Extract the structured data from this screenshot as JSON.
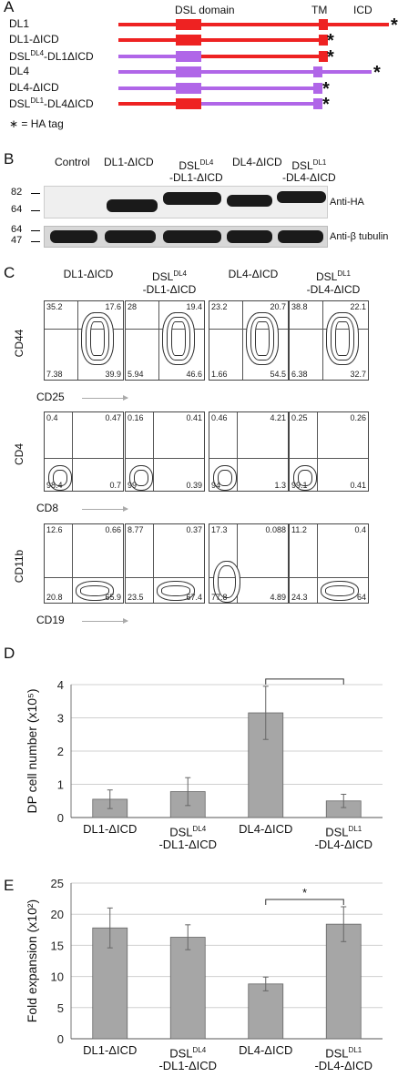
{
  "panel_a": {
    "label": "A",
    "header_dsl": "DSL domain",
    "header_tm": "TM",
    "header_icd": "ICD",
    "constructs": [
      {
        "name": "DL1"
      },
      {
        "name": "DL1-ΔICD"
      },
      {
        "name": "DSL",
        "sup": "DL4",
        "rest": "-DL1ΔICD"
      },
      {
        "name": "DL4"
      },
      {
        "name": "DL4-ΔICD"
      },
      {
        "name": "DSL",
        "sup": "DL1",
        "rest": "-DL4ΔICD"
      }
    ],
    "ha_legend": "∗ = HA tag",
    "colors": {
      "dl1": "#ee2222",
      "dl4": "#b066e8"
    }
  },
  "panel_b": {
    "label": "B",
    "lanes": [
      "Control",
      "DL1-ΔICD",
      "DSLDL4 -DL1-ΔICD",
      "DL4-ΔICD",
      "DSLDL1 -DL4-ΔICD"
    ],
    "lane_labels": [
      {
        "l1": "Control",
        "l2": ""
      },
      {
        "l1": "DL1-ΔICD",
        "l2": ""
      },
      {
        "l1": "DSL",
        "sup": "DL4",
        "l2": "-DL1-ΔICD"
      },
      {
        "l1": "DL4-ΔICD",
        "l2": ""
      },
      {
        "l1": "DSL",
        "sup": "DL1",
        "l2": "-DL4-ΔICD"
      }
    ],
    "mw_top": [
      "82",
      "64"
    ],
    "mw_bottom": [
      "64",
      "47"
    ],
    "blot1": "Anti-HA",
    "blot2": "Anti-β tubulin"
  },
  "panel_c": {
    "label": "C",
    "columns": [
      {
        "l1": "DL1-ΔICD",
        "l2": ""
      },
      {
        "l1": "DSL",
        "sup": "DL4",
        "l2": "-DL1-ΔICD"
      },
      {
        "l1": "DL4-ΔICD",
        "l2": ""
      },
      {
        "l1": "DSL",
        "sup": "DL1",
        "l2": "-DL4-ΔICD"
      }
    ],
    "rows": [
      {
        "ylabel": "CD44",
        "xlabel": "CD25",
        "quadrants": [
          [
            "35.2",
            "17.6",
            "7.38",
            "39.9"
          ],
          [
            "28",
            "19.4",
            "5.94",
            "46.6"
          ],
          [
            "23.2",
            "20.7",
            "1.66",
            "54.5"
          ],
          [
            "38.8",
            "22.1",
            "6.38",
            "32.7"
          ]
        ]
      },
      {
        "ylabel": "CD4",
        "xlabel": "CD8",
        "quadrants": [
          [
            "0.4",
            "0.47",
            "98.4",
            "0.7"
          ],
          [
            "0.16",
            "0.41",
            "99",
            "0.39"
          ],
          [
            "0.46",
            "4.21",
            "94",
            "1.3"
          ],
          [
            "0.25",
            "0.26",
            "99.1",
            "0.41"
          ]
        ]
      },
      {
        "ylabel": "CD11b",
        "xlabel": "CD19",
        "quadrants": [
          [
            "12.6",
            "0.66",
            "20.8",
            "65.9"
          ],
          [
            "8.77",
            "0.37",
            "23.5",
            "67.4"
          ],
          [
            "17.3",
            "0.088",
            "77.8",
            "4.89"
          ],
          [
            "11.2",
            "0.4",
            "24.3",
            "64"
          ]
        ]
      }
    ]
  },
  "chart_data": [
    {
      "panel": "D",
      "type": "bar",
      "categories": [
        "DL1-ΔICD",
        "DSLDL4-DL1-ΔICD",
        "DL4-ΔICD",
        "DSLDL1-DL4-ΔICD"
      ],
      "values": [
        0.55,
        0.78,
        3.15,
        0.5
      ],
      "errors": [
        0.28,
        0.42,
        0.8,
        0.2
      ],
      "ylabel": "DP cell number (x10⁵)",
      "ylim": [
        0,
        4
      ],
      "yticks": [
        "0",
        "1",
        "2",
        "3",
        "4"
      ],
      "significance": {
        "between": [
          2,
          3
        ],
        "mark": "*"
      },
      "grid": true,
      "bar_color": "#a6a6a6"
    },
    {
      "panel": "E",
      "type": "bar",
      "categories": [
        "DL1-ΔICD",
        "DSLDL4-DL1-ΔICD",
        "DL4-ΔICD",
        "DSLDL1-DL4-ΔICD"
      ],
      "values": [
        17.8,
        16.3,
        8.8,
        18.4
      ],
      "errors": [
        3.2,
        2.0,
        1.1,
        2.8
      ],
      "ylabel": "Fold expansion (x10²)",
      "ylim": [
        0,
        25
      ],
      "yticks": [
        "0",
        "5",
        "10",
        "15",
        "20",
        "25"
      ],
      "significance": {
        "between": [
          2,
          3
        ],
        "mark": "*"
      },
      "grid": true,
      "bar_color": "#a6a6a6"
    }
  ],
  "panel_d": {
    "label": "D",
    "xlabels": [
      {
        "l1": "DL1-ΔICD",
        "l2": ""
      },
      {
        "l1": "DSL",
        "sup": "DL4",
        "l2": "-DL1-ΔICD"
      },
      {
        "l1": "DL4-ΔICD",
        "l2": ""
      },
      {
        "l1": "DSL",
        "sup": "DL1",
        "l2": "-DL4-ΔICD"
      }
    ]
  },
  "panel_e": {
    "label": "E",
    "xlabels": [
      {
        "l1": "DL1-ΔICD",
        "l2": ""
      },
      {
        "l1": "DSL",
        "sup": "DL4",
        "l2": "-DL1-ΔICD"
      },
      {
        "l1": "DL4-ΔICD",
        "l2": ""
      },
      {
        "l1": "DSL",
        "sup": "DL1",
        "l2": "-DL4-ΔICD"
      }
    ]
  }
}
